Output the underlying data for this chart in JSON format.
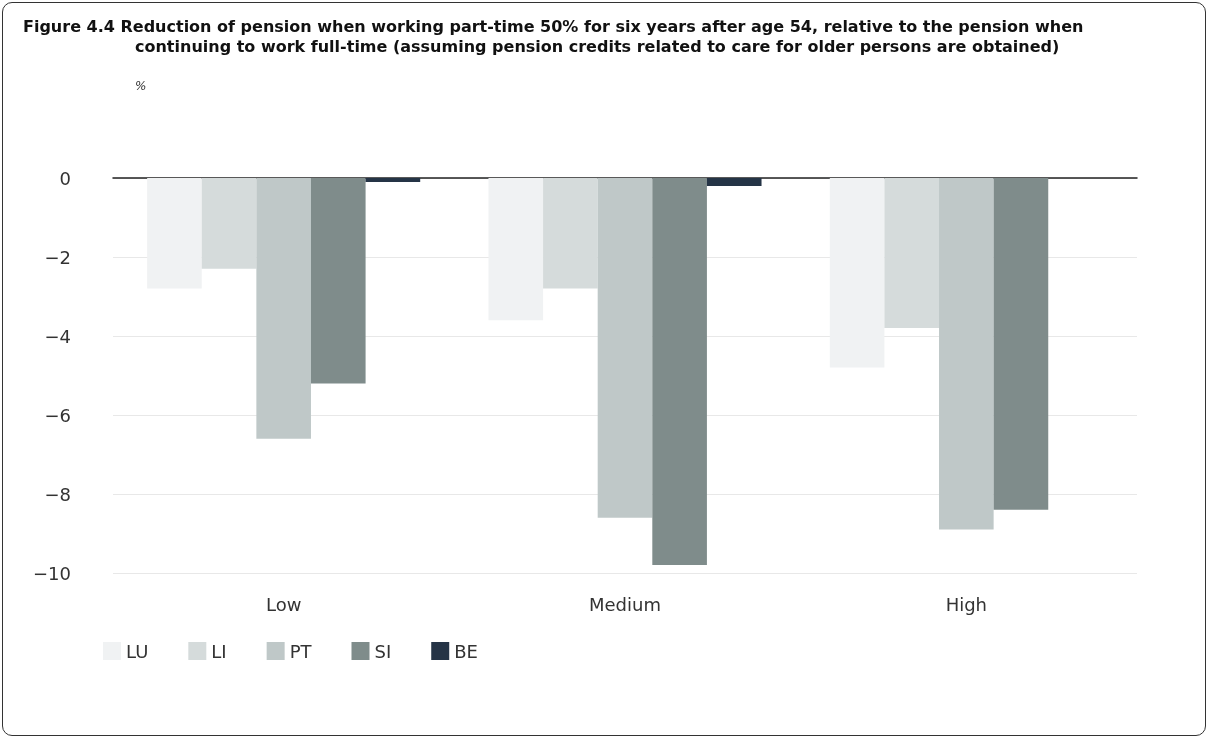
{
  "chart_data": {
    "type": "bar",
    "title": "Figure 4.4   Reduction of pension when working part-time 50% for six years after age 54, relative to the pension when continuing to work full-time (assuming pension credits related to care for older persons are obtained)",
    "subtitle": "%",
    "categories": [
      "Low",
      "Medium",
      "High"
    ],
    "series": [
      {
        "name": "LU",
        "color": "#f0f2f3",
        "values": [
          -2.8,
          -3.6,
          -4.8
        ]
      },
      {
        "name": "LI",
        "color": "#d5dbdb",
        "values": [
          -2.3,
          -2.8,
          -3.8
        ]
      },
      {
        "name": "PT",
        "color": "#bfc8c8",
        "values": [
          -6.6,
          -8.6,
          -8.9
        ]
      },
      {
        "name": "SI",
        "color": "#7f8c8b",
        "values": [
          -5.2,
          -9.8,
          -8.4
        ]
      },
      {
        "name": "BE",
        "color": "#253446",
        "values": [
          -0.1,
          -0.2,
          0
        ]
      }
    ],
    "ylim": [
      -10,
      0
    ],
    "yticks": [
      -10,
      -8,
      -6,
      -4,
      -2,
      0
    ],
    "grid": "y",
    "legend": "bottom left"
  }
}
